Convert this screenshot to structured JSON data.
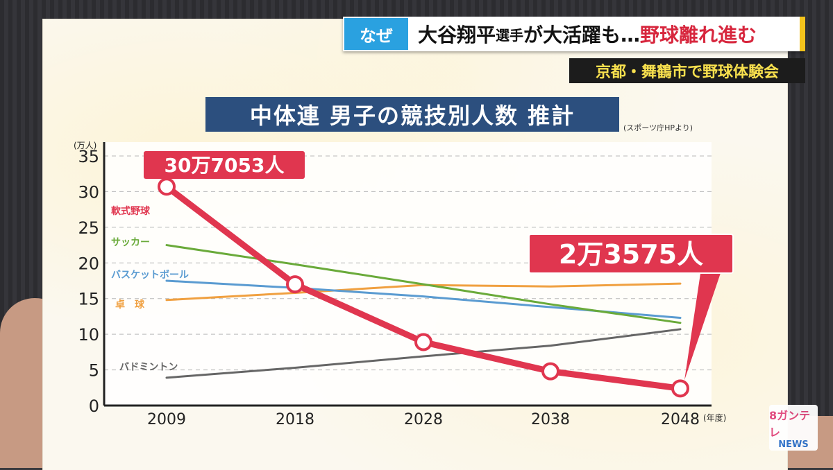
{
  "banner": {
    "tag": "なぜ",
    "headline_part1": "大谷翔平",
    "headline_part2": "選手",
    "headline_part3": "が大活躍も…",
    "headline_part4": "野球離れ進む",
    "sub": "京都・舞鶴市で野球体験会"
  },
  "title": "中体連 男子の競技別人数 推計",
  "source": "(スポーツ庁HPより)",
  "logo": {
    "top": "8ガンテレ",
    "bottom": "NEWS"
  },
  "colors": {
    "baseball": "#e0364f",
    "soccer": "#6aaa3a",
    "basketball": "#5a9bd1",
    "tabletennis": "#f0a040",
    "badminton": "#666666",
    "title_bg": "#2c4f7e"
  },
  "chart_data": {
    "type": "line",
    "x": [
      2009,
      2018,
      2028,
      2038,
      2048
    ],
    "x_tick_labels": [
      "2009",
      "2018",
      "2028",
      "2038",
      "2048"
    ],
    "x_unit": "(年度)",
    "y_unit": "(万人)",
    "ylim": [
      0,
      35
    ],
    "y_ticks": [
      0,
      5,
      10,
      15,
      20,
      25,
      30,
      35
    ],
    "grid": "horizontal dashed",
    "series": [
      {
        "name": "軟式野球",
        "values": [
          30.7,
          17.0,
          8.9,
          4.8,
          2.4
        ]
      },
      {
        "name": "サッカー",
        "values": [
          22.5,
          19.8,
          17.0,
          14.2,
          11.6
        ]
      },
      {
        "name": "バスケットボール",
        "values": [
          17.5,
          16.5,
          15.3,
          13.8,
          12.3
        ]
      },
      {
        "name": "卓　球",
        "values": [
          14.8,
          15.8,
          16.9,
          16.7,
          17.1
        ]
      },
      {
        "name": "バドミントン",
        "values": [
          3.9,
          5.3,
          6.9,
          8.4,
          10.7
        ]
      }
    ],
    "annotations": [
      {
        "series": "軟式野球",
        "x": 2009,
        "text": "30万7053人"
      },
      {
        "series": "軟式野球",
        "x": 2048,
        "text": "2万3575人"
      }
    ]
  }
}
